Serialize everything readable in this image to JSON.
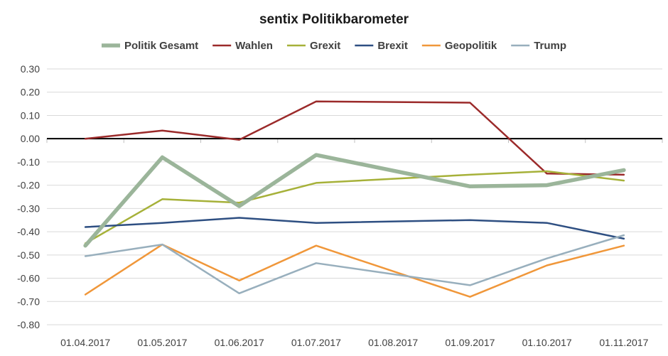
{
  "chart_data": {
    "type": "line",
    "title": "sentix Politikbarometer",
    "xlabel": "",
    "ylabel": "",
    "ylim": [
      -0.8,
      0.3
    ],
    "y_ticks": [
      "0.30",
      "0.20",
      "0.10",
      "0.00",
      "-0.10",
      "-0.20",
      "-0.30",
      "-0.40",
      "-0.50",
      "-0.60",
      "-0.70",
      "-0.80"
    ],
    "categories": [
      "01.04.2017",
      "01.05.2017",
      "01.06.2017",
      "01.07.2017",
      "01.08.2017",
      "01.09.2017",
      "01.10.2017",
      "01.11.2017"
    ],
    "grid": true,
    "legend_position": "top",
    "series": [
      {
        "name": "Politik Gesamt",
        "color": "#9bb59a",
        "values": [
          -0.46,
          -0.08,
          -0.29,
          -0.07,
          null,
          -0.205,
          -0.2,
          -0.135
        ]
      },
      {
        "name": "Wahlen",
        "color": "#9b2a2a",
        "values": [
          0.0,
          0.035,
          -0.005,
          0.16,
          null,
          0.155,
          -0.15,
          -0.155
        ]
      },
      {
        "name": "Grexit",
        "color": "#a6b139",
        "values": [
          -0.45,
          -0.26,
          -0.275,
          -0.19,
          null,
          -0.155,
          -0.14,
          -0.18
        ]
      },
      {
        "name": "Brexit",
        "color": "#2e4f82",
        "values": [
          -0.38,
          -0.362,
          -0.34,
          -0.362,
          null,
          -0.35,
          -0.362,
          -0.43
        ]
      },
      {
        "name": "Geopolitik",
        "color": "#f0973a",
        "values": [
          -0.67,
          -0.455,
          -0.61,
          -0.46,
          null,
          -0.68,
          -0.545,
          -0.46
        ]
      },
      {
        "name": "Trump",
        "color": "#98afbd",
        "values": [
          -0.505,
          -0.455,
          -0.665,
          -0.535,
          null,
          -0.63,
          -0.515,
          -0.415
        ]
      }
    ]
  }
}
